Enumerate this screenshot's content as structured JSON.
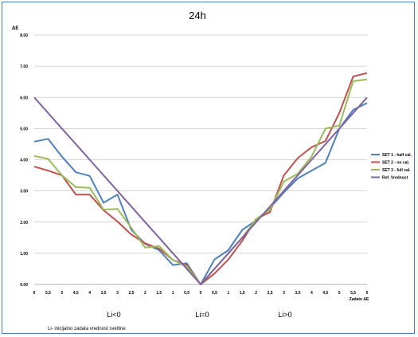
{
  "chart_data": {
    "type": "line",
    "title": "24h",
    "ylabel": "ΔE",
    "x_end_label": "Zadato ΔE",
    "categories": [
      "6",
      "5,5",
      "5",
      "4,5",
      "4",
      "3,5",
      "3",
      "2,5",
      "2",
      "1,5",
      "1",
      "0,5",
      "0",
      "0,5",
      "1",
      "1,5",
      "2",
      "2,5",
      "3",
      "3,5",
      "4",
      "4,5",
      "5",
      "5,5",
      "6"
    ],
    "ylim": [
      0,
      8
    ],
    "y_ticks": [
      "0.00",
      "1.00",
      "2.00",
      "3.00",
      "4.00",
      "5.00",
      "6.00",
      "7.00",
      "8.00"
    ],
    "grid": true,
    "legend_position": "right",
    "series": [
      {
        "name": "SET 1 - half cal.",
        "color": "#4f81bd",
        "values": [
          4.58,
          4.67,
          4.1,
          3.6,
          3.48,
          2.62,
          2.88,
          1.75,
          1.3,
          1.1,
          0.62,
          0.68,
          0.0,
          0.8,
          1.1,
          1.75,
          2.05,
          2.45,
          2.95,
          3.4,
          3.65,
          3.9,
          5.0,
          5.6,
          5.82
        ]
      },
      {
        "name": "SET 2 - no cal.",
        "color": "#c0504d",
        "values": [
          3.78,
          3.65,
          3.5,
          2.88,
          2.88,
          2.38,
          2.02,
          1.6,
          1.32,
          1.15,
          0.78,
          0.62,
          0.0,
          0.35,
          0.8,
          1.4,
          2.1,
          2.32,
          3.5,
          4.05,
          4.4,
          4.6,
          5.5,
          6.67,
          6.78
        ]
      },
      {
        "name": "SET 3 - full cal.",
        "color": "#9bbb59",
        "values": [
          4.12,
          4.03,
          3.5,
          3.12,
          3.1,
          2.4,
          2.42,
          1.82,
          1.18,
          1.23,
          0.78,
          0.58,
          0.0,
          0.5,
          1.0,
          1.5,
          2.1,
          2.4,
          3.3,
          3.55,
          4.1,
          5.0,
          5.1,
          6.52,
          6.58
        ]
      },
      {
        "name": "Ref. Vrednost",
        "color": "#8064a2",
        "values": [
          6.0,
          5.5,
          5.0,
          4.5,
          4.0,
          3.5,
          3.0,
          2.5,
          2.0,
          1.5,
          1.0,
          0.5,
          0.0,
          0.5,
          1.0,
          1.5,
          2.0,
          2.5,
          3.0,
          3.5,
          4.0,
          4.5,
          5.0,
          5.5,
          6.0
        ]
      }
    ],
    "region_labels": [
      "Li<0",
      "Li=0",
      "Li>0"
    ],
    "footnote": "Li- inicijalno zadata vrednost svetline"
  }
}
